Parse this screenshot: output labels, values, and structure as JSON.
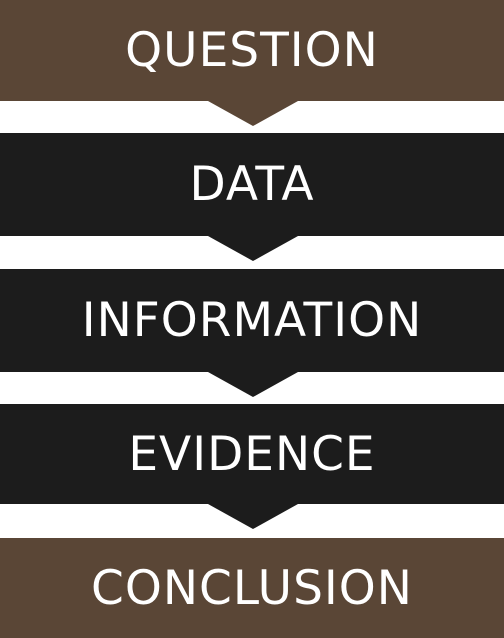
{
  "diagram": {
    "steps": [
      {
        "label": "QUESTION",
        "color": "#5a4636"
      },
      {
        "label": "DATA",
        "color": "#1c1c1c"
      },
      {
        "label": "INFORMATION",
        "color": "#1c1c1c"
      },
      {
        "label": "EVIDENCE",
        "color": "#1c1c1c"
      },
      {
        "label": "CONCLUSION",
        "color": "#5a4636"
      }
    ],
    "background_color": "#ffffff",
    "text_color": "#ffffff"
  }
}
